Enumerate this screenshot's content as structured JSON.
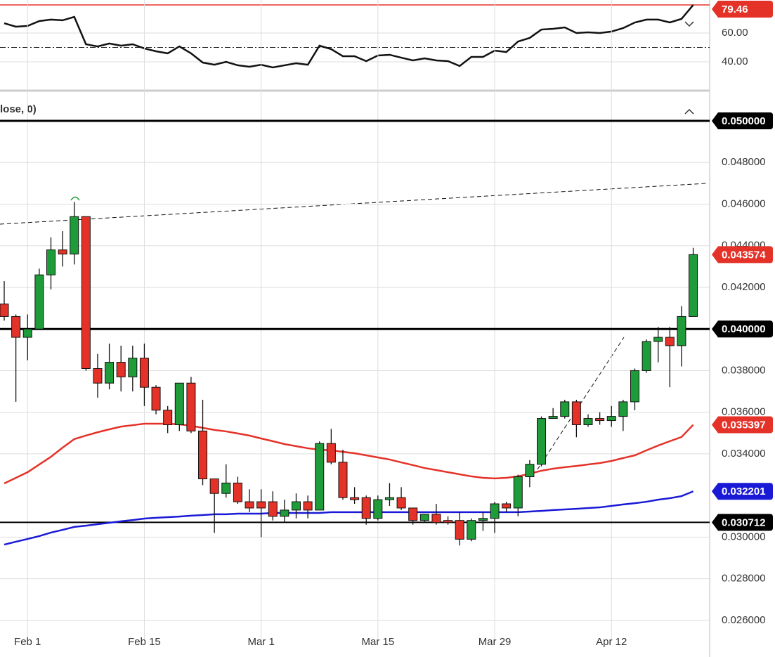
{
  "chart_data": [
    {
      "type": "line",
      "series": [
        {
          "color": "#111111",
          "values": [
            66.8,
            64.4,
            64.9,
            68.3,
            69.3,
            68.8,
            71.2,
            52.2,
            50.7,
            52.7,
            51.2,
            52.2,
            49.3,
            47.3,
            45.9,
            50.7,
            45.9,
            39.5,
            38.0,
            40.0,
            37.6,
            36.6,
            38.0,
            36.1,
            37.6,
            39.0,
            38.0,
            51.2,
            48.8,
            43.9,
            43.9,
            40.5,
            44.4,
            44.9,
            42.9,
            41.0,
            42.4,
            41.0,
            40.5,
            37.1,
            43.4,
            43.4,
            47.8,
            46.8,
            54.1,
            56.6,
            62.4,
            62.9,
            63.9,
            60.0,
            60.5,
            60.0,
            61.0,
            63.4,
            67.3,
            69.3,
            69.3,
            67.3,
            69.8,
            79.46
          ]
        }
      ],
      "ylim": [
        20.5,
        82.9
      ],
      "yticks": [
        {
          "value": 60,
          "label": "60.00"
        },
        {
          "value": 40,
          "label": "40.00"
        }
      ],
      "level": 50,
      "last_value_color": "#e53228",
      "grid": true
    },
    {
      "type": "candlestick",
      "indicator_label": "lose, 0)",
      "categories": [
        null,
        null,
        "Feb 1",
        null,
        null,
        null,
        null,
        null,
        null,
        null,
        null,
        null,
        "Feb 15",
        null,
        null,
        null,
        null,
        null,
        null,
        null,
        null,
        null,
        "Mar 1",
        null,
        null,
        null,
        null,
        null,
        null,
        null,
        null,
        null,
        "Mar 15",
        null,
        null,
        null,
        null,
        null,
        null,
        null,
        null,
        null,
        "Mar 29",
        null,
        null,
        null,
        null,
        null,
        null,
        null,
        null,
        null,
        "Apr 12",
        null,
        null,
        null,
        null,
        null,
        null,
        null
      ],
      "open": [
        0.0412,
        0.0406,
        0.0396,
        0.04,
        0.0426,
        0.0438,
        0.0436,
        0.0454,
        0.0381,
        0.0374,
        0.0384,
        0.0377,
        0.0386,
        0.0372,
        0.0361,
        0.0354,
        0.0374,
        0.0351,
        0.0328,
        0.0321,
        0.0326,
        0.0317,
        0.0317,
        0.0317,
        0.031,
        0.0313,
        0.0317,
        0.0313,
        0.0345,
        0.0336,
        0.0319,
        0.0319,
        0.0309,
        0.0318,
        0.0319,
        0.0314,
        0.0308,
        0.0311,
        0.0308,
        0.0308,
        0.0299,
        0.0308,
        0.0309,
        0.0316,
        0.0314,
        0.0329,
        0.0335,
        0.0357,
        0.0358,
        0.0365,
        0.0354,
        0.0357,
        0.0356,
        0.0358,
        0.0365,
        0.038,
        0.0394,
        0.0396,
        0.0392,
        0.0406
      ],
      "high": [
        0.0423,
        0.0407,
        0.0407,
        0.0429,
        0.0444,
        0.0447,
        0.0461,
        0.0454,
        0.0388,
        0.0393,
        0.0392,
        0.0392,
        0.0393,
        0.0373,
        0.0363,
        0.0374,
        0.0377,
        0.0366,
        0.0328,
        0.0335,
        0.0329,
        0.0323,
        0.0323,
        0.0322,
        0.0318,
        0.0321,
        0.032,
        0.0346,
        0.0352,
        0.0342,
        0.0324,
        0.032,
        0.032,
        0.0326,
        0.0324,
        0.0314,
        0.0311,
        0.0316,
        0.031,
        0.0312,
        0.0309,
        0.0312,
        0.0317,
        0.0317,
        0.033,
        0.0337,
        0.0358,
        0.0362,
        0.0366,
        0.0366,
        0.0359,
        0.036,
        0.0363,
        0.0366,
        0.0381,
        0.0395,
        0.0401,
        0.0401,
        0.0411,
        0.0439
      ],
      "low": [
        0.0404,
        0.0365,
        0.0385,
        0.04,
        0.0419,
        0.043,
        0.0431,
        0.038,
        0.0367,
        0.0371,
        0.037,
        0.037,
        0.0363,
        0.0359,
        0.035,
        0.0351,
        0.035,
        0.0325,
        0.0302,
        0.0319,
        0.0316,
        0.0312,
        0.03,
        0.0308,
        0.0307,
        0.0309,
        0.0309,
        0.0313,
        0.0335,
        0.0318,
        0.0316,
        0.0306,
        0.0308,
        0.0315,
        0.0313,
        0.0306,
        0.0307,
        0.0306,
        0.0306,
        0.0296,
        0.0298,
        0.0303,
        0.0302,
        0.0312,
        0.031,
        0.0324,
        0.0334,
        0.0357,
        0.0357,
        0.0348,
        0.0353,
        0.0354,
        0.0353,
        0.0351,
        0.0361,
        0.0379,
        0.0384,
        0.0372,
        0.0382,
        0.0406
      ],
      "close": [
        0.0406,
        0.0396,
        0.04,
        0.0426,
        0.0438,
        0.0436,
        0.0454,
        0.0381,
        0.0374,
        0.0384,
        0.0377,
        0.0386,
        0.0372,
        0.0361,
        0.0354,
        0.0374,
        0.0351,
        0.0328,
        0.0321,
        0.0326,
        0.0317,
        0.0314,
        0.0314,
        0.031,
        0.0313,
        0.0317,
        0.0313,
        0.0345,
        0.0336,
        0.0319,
        0.0318,
        0.0309,
        0.0318,
        0.0319,
        0.0314,
        0.0308,
        0.0311,
        0.0307,
        0.0307,
        0.0299,
        0.0308,
        0.0309,
        0.0316,
        0.0314,
        0.0329,
        0.0335,
        0.0357,
        0.0358,
        0.0365,
        0.0354,
        0.0357,
        0.0356,
        0.0358,
        0.0365,
        0.038,
        0.0394,
        0.0396,
        0.0392,
        0.0406,
        0.043574
      ],
      "up_color": "#1f9c3a",
      "down_color": "#e53228",
      "last_color": "#e53228",
      "overlays": [
        {
          "color": "#e53228",
          "values": [
            0.03258,
            0.03285,
            0.03312,
            0.03349,
            0.03386,
            0.0343,
            0.03471,
            0.03488,
            0.03504,
            0.03518,
            0.03531,
            0.03538,
            0.03545,
            0.03545,
            0.03545,
            0.03542,
            0.03535,
            0.03525,
            0.03515,
            0.03508,
            0.03498,
            0.03488,
            0.03474,
            0.03461,
            0.03447,
            0.03437,
            0.03427,
            0.0342,
            0.03417,
            0.0341,
            0.03403,
            0.03393,
            0.03383,
            0.03373,
            0.03359,
            0.03346,
            0.03332,
            0.03322,
            0.03312,
            0.03302,
            0.03292,
            0.03285,
            0.03282,
            0.03285,
            0.03292,
            0.03305,
            0.03319,
            0.03329,
            0.03336,
            0.03342,
            0.03349,
            0.03356,
            0.03366,
            0.0338,
            0.03393,
            0.03417,
            0.0344,
            0.03461,
            0.03481,
            0.035397
          ]
        },
        {
          "color": "#1a1ad6",
          "values": [
            0.02964,
            0.02978,
            0.02991,
            0.03005,
            0.03022,
            0.03035,
            0.03049,
            0.03055,
            0.03062,
            0.03069,
            0.03076,
            0.03082,
            0.03089,
            0.03093,
            0.03096,
            0.03099,
            0.03103,
            0.03106,
            0.0311,
            0.0311,
            0.03113,
            0.03113,
            0.03113,
            0.03116,
            0.03116,
            0.03116,
            0.03116,
            0.03116,
            0.0312,
            0.0312,
            0.0312,
            0.0312,
            0.0312,
            0.0312,
            0.0312,
            0.0312,
            0.0312,
            0.0312,
            0.0312,
            0.0312,
            0.0312,
            0.0312,
            0.0312,
            0.0312,
            0.0312,
            0.03123,
            0.03126,
            0.0313,
            0.03133,
            0.03136,
            0.0314,
            0.03143,
            0.0315,
            0.03157,
            0.03163,
            0.0317,
            0.0318,
            0.03187,
            0.03197,
            0.032201
          ]
        }
      ],
      "levels": [
        {
          "value": 0.05,
          "label": "0.050000"
        },
        {
          "value": 0.04,
          "label": "0.040000"
        },
        {
          "value": 0.030712,
          "label": "0.030712"
        }
      ],
      "level_color": "#000000",
      "ylim": [
        0.025085,
        0.051418
      ],
      "yticks": [
        {
          "value": 0.048,
          "label": "0.048000"
        },
        {
          "value": 0.046,
          "label": "0.046000"
        },
        {
          "value": 0.044,
          "label": "0.044000"
        },
        {
          "value": 0.042,
          "label": "0.042000"
        },
        {
          "value": 0.038,
          "label": "0.038000"
        },
        {
          "value": 0.036,
          "label": "0.036000"
        },
        {
          "value": 0.034,
          "label": "0.034000"
        },
        {
          "value": 0.03,
          "label": "0.030000"
        },
        {
          "value": 0.028,
          "label": "0.028000"
        },
        {
          "value": 0.026,
          "label": "0.026000"
        }
      ],
      "grid": true
    }
  ]
}
